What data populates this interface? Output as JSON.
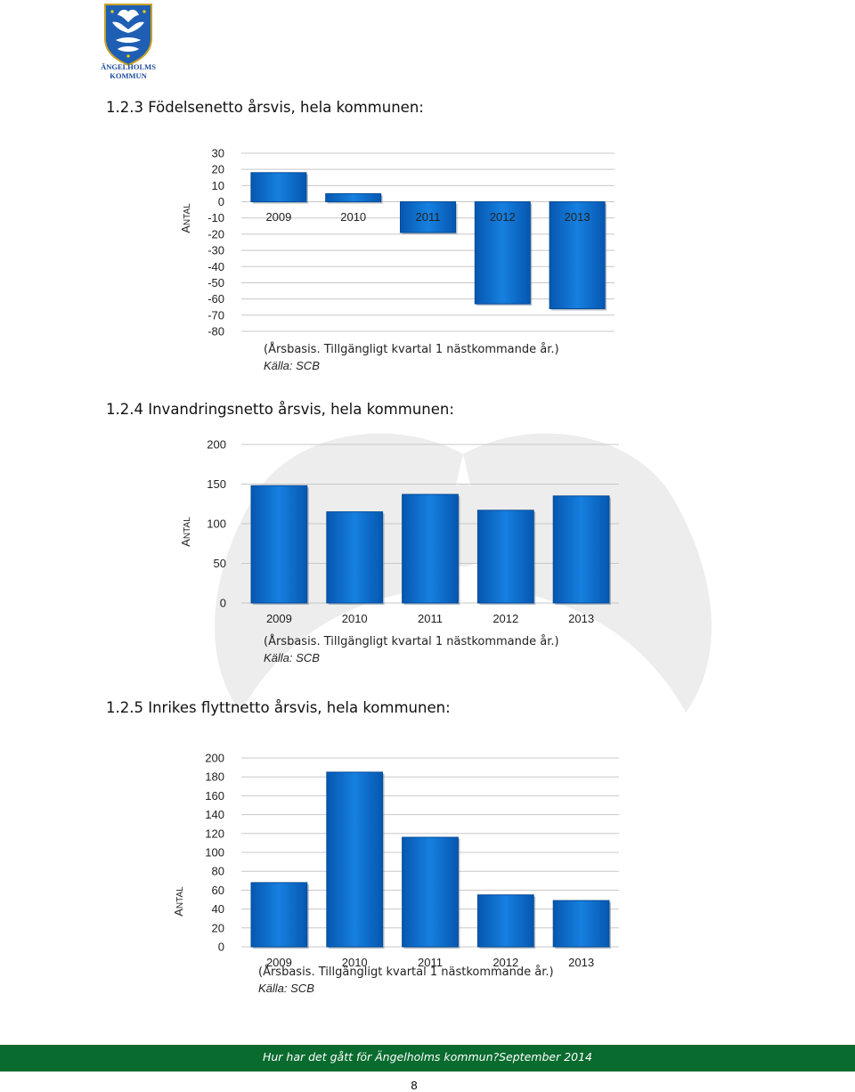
{
  "logo": {
    "line1": "ÄNGELHOLMS",
    "line2": "KOMMUN"
  },
  "sections": [
    {
      "heading": "1.2.3 Födelsenetto årsvis, hela kommunen:",
      "note": "(Årsbasis. Tillgängligt kvartal 1 nästkommande år.)",
      "source": "Källa: SCB"
    },
    {
      "heading": "1.2.4 Invandringsnetto årsvis, hela kommunen:",
      "note": "(Årsbasis. Tillgängligt kvartal 1 nästkommande år.)",
      "source": "Källa: SCB"
    },
    {
      "heading": "1.2.5 Inrikes flyttnetto årsvis, hela kommunen:",
      "note": "(Årsbasis. Tillgängligt kvartal 1 nästkommande år.)",
      "source": "Källa: SCB"
    }
  ],
  "chart_data": [
    {
      "type": "bar",
      "categories": [
        "2009",
        "2010",
        "2011",
        "2012",
        "2013"
      ],
      "values": [
        18,
        5,
        -19,
        -63,
        -66
      ],
      "ylabel": "ANTAL",
      "ylim": [
        -80,
        30
      ],
      "ticks": [
        30,
        20,
        10,
        0,
        -10,
        -20,
        -30,
        -40,
        -50,
        -60,
        -70,
        -80
      ],
      "grid": true,
      "color": "#0a6fcc"
    },
    {
      "type": "bar",
      "categories": [
        "2009",
        "2010",
        "2011",
        "2012",
        "2013"
      ],
      "values": [
        148,
        115,
        137,
        117,
        135
      ],
      "ylabel": "ANTAL",
      "ylim": [
        0,
        200
      ],
      "ticks": [
        200,
        150,
        100,
        50,
        0
      ],
      "grid": true,
      "color": "#0a6fcc"
    },
    {
      "type": "bar",
      "categories": [
        "2009",
        "2010",
        "2011",
        "2012",
        "2013"
      ],
      "values": [
        68,
        185,
        116,
        55,
        49
      ],
      "ylabel": "ANTAL",
      "ylim": [
        0,
        200
      ],
      "ticks": [
        200,
        180,
        160,
        140,
        120,
        100,
        80,
        60,
        40,
        20,
        0
      ],
      "grid": true,
      "color": "#0a6fcc"
    }
  ],
  "footer": {
    "text": "Hur har det gått för Ängelholms kommun?September 2014",
    "page": "8"
  }
}
